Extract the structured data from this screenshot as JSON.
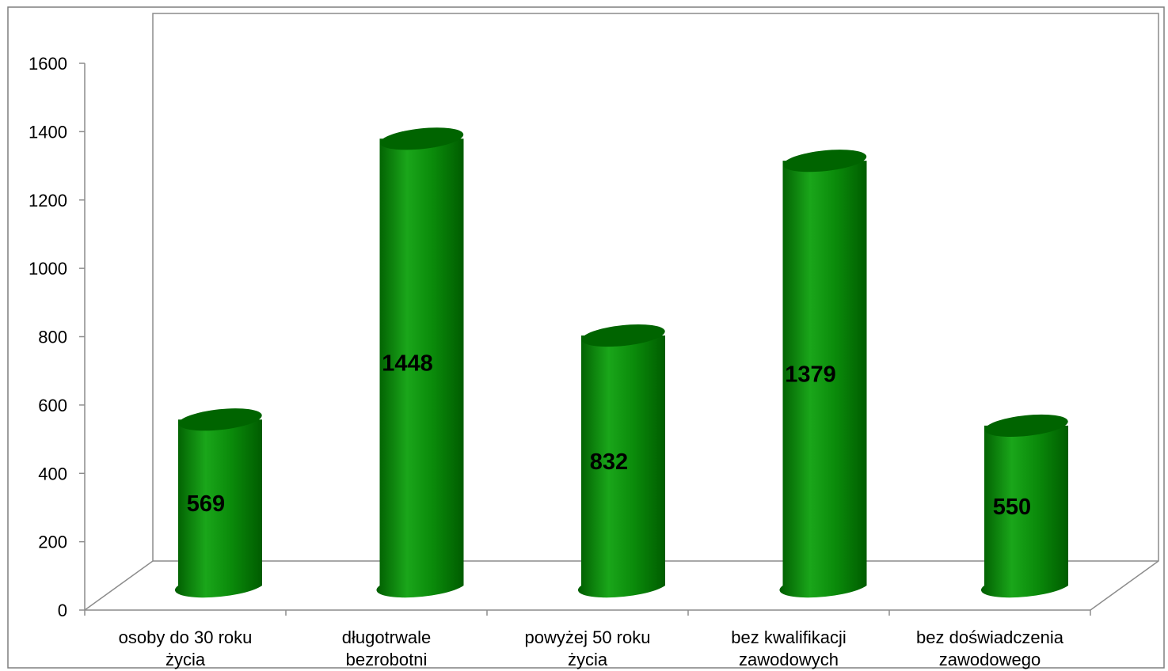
{
  "chart_data": {
    "type": "bar",
    "style": "3d-cylinder",
    "categories": [
      [
        "osoby do 30 roku",
        "życia"
      ],
      [
        "długotrwale",
        "bezrobotni"
      ],
      [
        "powyżej 50 roku",
        "życia"
      ],
      [
        "bez kwalifikacji",
        "zawodowych"
      ],
      [
        "bez doświadczenia",
        "zawodowego"
      ]
    ],
    "values": [
      569,
      1448,
      832,
      1379,
      550
    ],
    "data_labels": [
      "569",
      "1448",
      "832",
      "1379",
      "550"
    ],
    "ylim": [
      0,
      1600
    ],
    "y_ticks": [
      "0",
      "200",
      "400",
      "600",
      "800",
      "1000",
      "1200",
      "1400",
      "1600"
    ],
    "title": "",
    "xlabel": "",
    "ylabel": "",
    "grid": false,
    "legend": "none",
    "colors": {
      "bar_dark": "#005c00",
      "bar_mid": "#0a8a0a",
      "bar_light": "#1aa61a",
      "bar_top": "#006400",
      "axis": "#8c8c8c",
      "frame": "#7f7f7f"
    }
  }
}
